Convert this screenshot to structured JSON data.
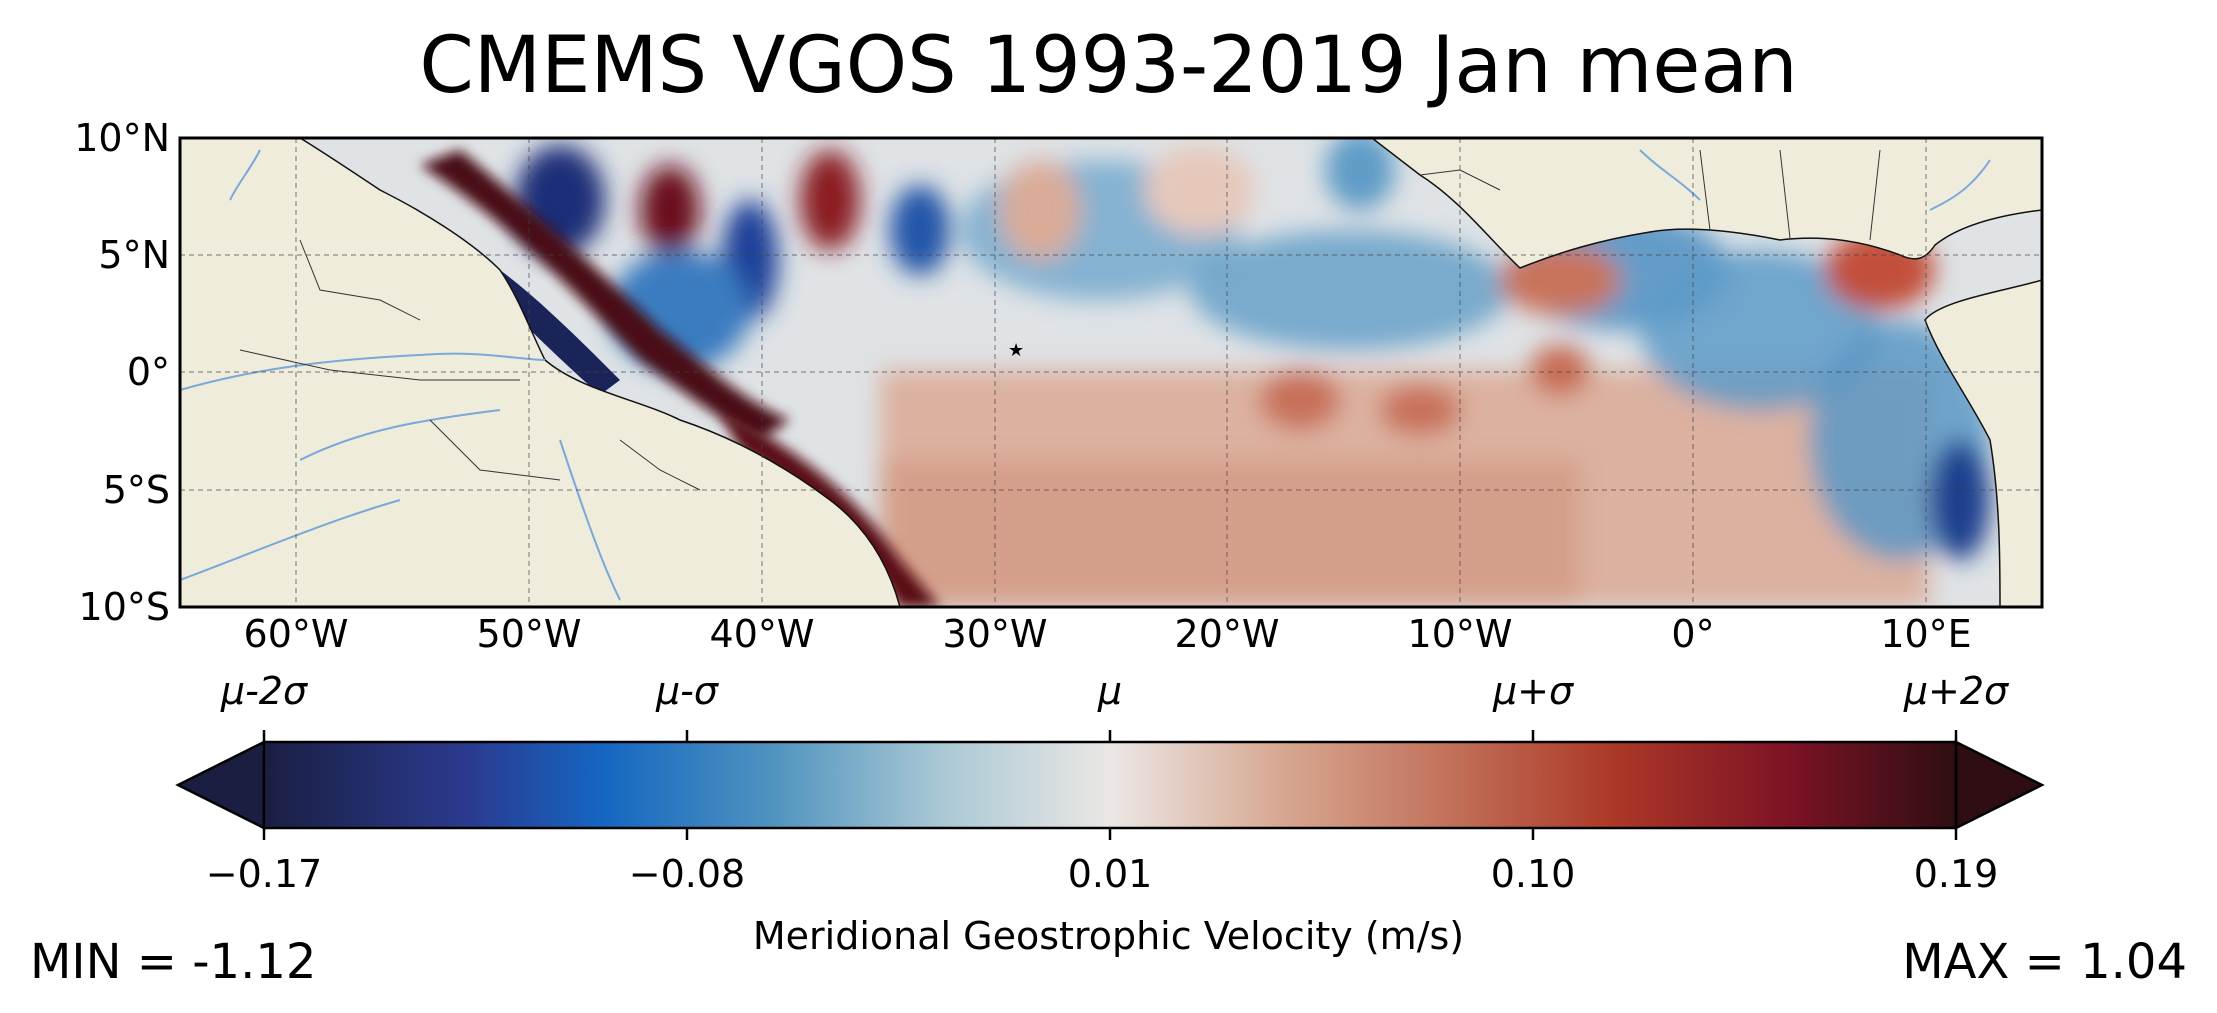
{
  "title": "CMEMS VGOS 1993-2019 Jan mean",
  "map": {
    "lat_labels": [
      "10°N",
      "5°N",
      "0°",
      "5°S",
      "10°S"
    ],
    "lon_labels": [
      "60°W",
      "50°W",
      "40°W",
      "30°W",
      "20°W",
      "10°W",
      "0°",
      "10°E"
    ],
    "extent": {
      "lon_min": -65,
      "lon_max": 15,
      "lat_min": -10,
      "lat_max": 10
    },
    "land_color": "#efecdc",
    "river_color": "#7aa8d8"
  },
  "colorbar": {
    "colormap": "balance",
    "sigma_labels": [
      "μ-2σ",
      "μ-σ",
      "μ",
      "μ+σ",
      "μ+2σ"
    ],
    "tick_values": [
      "−0.17",
      "−0.08",
      "0.01",
      "0.10",
      "0.19"
    ],
    "label": "Meridional Geostrophic Velocity (m/s)",
    "colors": [
      "#1a1f42",
      "#2b3a8f",
      "#1466c2",
      "#4f93bf",
      "#a9c8d4",
      "#ebe7e5",
      "#d7a892",
      "#c2715a",
      "#ab3726",
      "#7d1325",
      "#2e0e12"
    ]
  },
  "stats": {
    "min_label": "MIN = -1.12",
    "max_label": "MAX = 1.04"
  }
}
